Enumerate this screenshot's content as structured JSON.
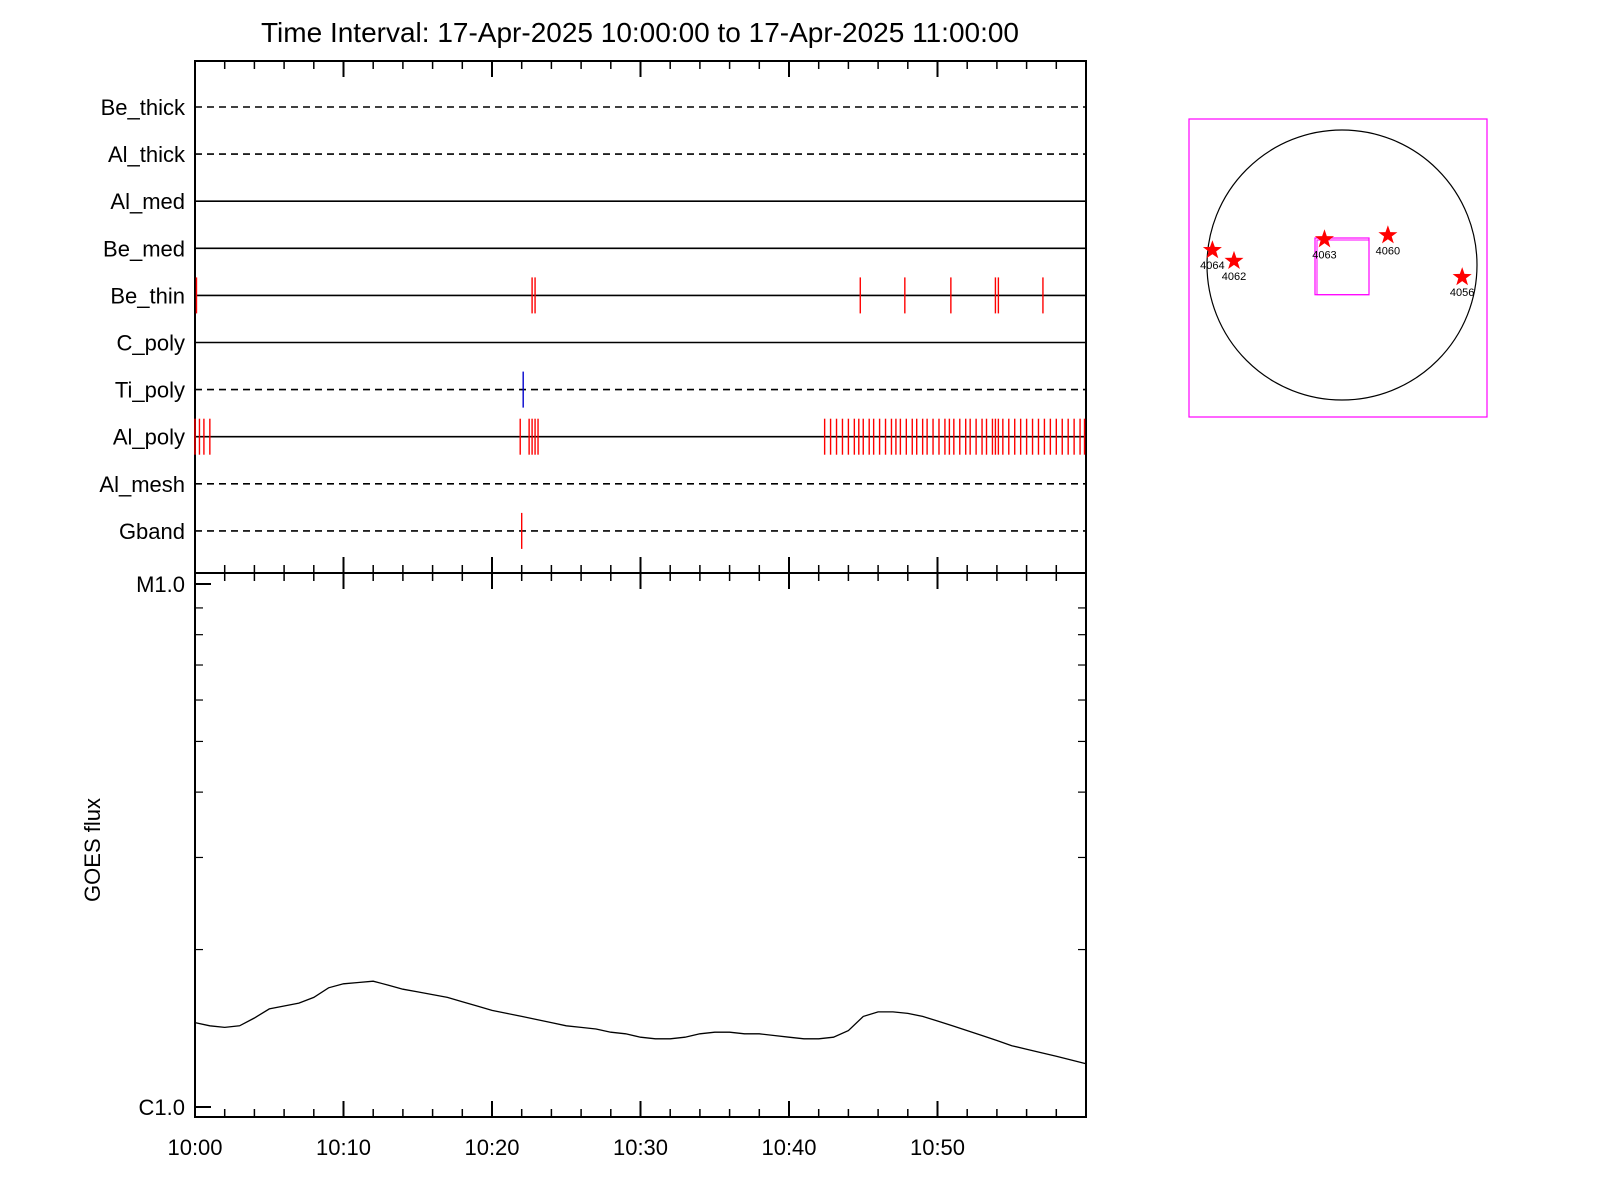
{
  "chart_data": [
    {
      "type": "timeline",
      "title": "Time Interval: 17-Apr-2025 10:00:00 to 17-Apr-2025 11:00:00",
      "x_range_minutes": [
        0,
        60
      ],
      "x_tick_labels": [
        "10:00",
        "10:10",
        "10:20",
        "10:30",
        "10:40",
        "10:50"
      ],
      "x_tick_minutes": [
        0,
        10,
        20,
        30,
        40,
        50
      ],
      "colors": {
        "red": "#ff0000",
        "blue": "#0000cc",
        "magenta": "#ff00ff",
        "axis": "#000000"
      },
      "rows": [
        {
          "label": "Be_thick",
          "style": "dashed",
          "events": [],
          "color": "#ff0000"
        },
        {
          "label": "Al_thick",
          "style": "dashed",
          "events": [],
          "color": "#ff0000"
        },
        {
          "label": "Al_med",
          "style": "solid",
          "events": [],
          "color": "#ff0000"
        },
        {
          "label": "Be_med",
          "style": "solid",
          "events": [],
          "color": "#ff0000"
        },
        {
          "label": "Be_thin",
          "style": "solid",
          "events": [
            0.1,
            22.7,
            22.9,
            44.8,
            47.8,
            50.9,
            53.9,
            54.1,
            57.1
          ],
          "color": "#ff0000"
        },
        {
          "label": "C_poly",
          "style": "solid",
          "events": [],
          "color": "#ff0000"
        },
        {
          "label": "Ti_poly",
          "style": "dashed",
          "events": [
            22.1
          ],
          "color": "#0000cc"
        },
        {
          "label": "Al_poly",
          "style": "solid",
          "events": [
            0.0,
            0.3,
            0.6,
            1.0,
            21.9,
            22.5,
            22.7,
            22.9,
            23.1,
            42.4,
            42.8,
            43.2,
            43.6,
            44.0,
            44.4,
            44.7,
            45.0,
            45.4,
            45.7,
            46.1,
            46.5,
            46.9,
            47.2,
            47.5,
            47.9,
            48.3,
            48.6,
            49.0,
            49.3,
            49.7,
            50.1,
            50.5,
            50.8,
            51.1,
            51.5,
            51.9,
            52.2,
            52.6,
            53.0,
            53.3,
            53.7,
            53.9,
            54.1,
            54.4,
            54.8,
            55.2,
            55.6,
            56.0,
            56.4,
            56.8,
            57.2,
            57.6,
            58.0,
            58.4,
            58.8,
            59.2,
            59.6,
            59.9
          ],
          "color": "#ff0000"
        },
        {
          "label": "Al_mesh",
          "style": "dashed",
          "events": [],
          "color": "#ff0000"
        },
        {
          "label": "Gband",
          "style": "dashed",
          "events": [
            22.0
          ],
          "color": "#ff0000"
        }
      ]
    },
    {
      "type": "line",
      "ylabel": "GOES flux",
      "y_scale": "log",
      "ylim": [
        "C1.0",
        "M1.0"
      ],
      "y_tick_labels": [
        "M1.0",
        "C1.0"
      ],
      "x_range_minutes": [
        0,
        60
      ],
      "x_tick_labels": [
        "10:00",
        "10:10",
        "10:20",
        "10:30",
        "10:40",
        "10:50"
      ],
      "x_tick_minutes": [
        0,
        10,
        20,
        30,
        40,
        50
      ],
      "series": [
        {
          "color": "#000000",
          "x": [
            0,
            1,
            2,
            3,
            4,
            5,
            6,
            7,
            8,
            9,
            10,
            11,
            12,
            13,
            14,
            15,
            16,
            17,
            18,
            19,
            20,
            21,
            22,
            23,
            24,
            25,
            26,
            27,
            28,
            29,
            30,
            31,
            32,
            33,
            34,
            35,
            36,
            37,
            38,
            39,
            40,
            41,
            42,
            43,
            44,
            45,
            46,
            47,
            48,
            49,
            50,
            51,
            52,
            53,
            54,
            55,
            56,
            57,
            58,
            59,
            60
          ],
          "y": [
            1.45,
            1.43,
            1.42,
            1.43,
            1.48,
            1.54,
            1.56,
            1.58,
            1.62,
            1.69,
            1.72,
            1.73,
            1.74,
            1.71,
            1.68,
            1.66,
            1.64,
            1.62,
            1.59,
            1.56,
            1.53,
            1.51,
            1.49,
            1.47,
            1.45,
            1.43,
            1.42,
            1.41,
            1.39,
            1.38,
            1.36,
            1.35,
            1.35,
            1.36,
            1.38,
            1.39,
            1.39,
            1.38,
            1.38,
            1.37,
            1.36,
            1.35,
            1.35,
            1.36,
            1.4,
            1.49,
            1.52,
            1.52,
            1.51,
            1.49,
            1.46,
            1.43,
            1.4,
            1.37,
            1.34,
            1.31,
            1.29,
            1.27,
            1.25,
            1.23,
            1.21
          ]
        }
      ]
    },
    {
      "type": "scatter",
      "points": [
        {
          "label": "4064",
          "x": -0.96,
          "y": 0.11,
          "color": "#ff0000"
        },
        {
          "label": "4062",
          "x": -0.8,
          "y": 0.03,
          "color": "#ff0000"
        },
        {
          "label": "4063",
          "x": -0.13,
          "y": 0.19,
          "color": "#ff0000"
        },
        {
          "label": "4060",
          "x": 0.34,
          "y": 0.22,
          "color": "#ff0000"
        },
        {
          "label": "4056",
          "x": 0.89,
          "y": -0.09,
          "color": "#ff0000"
        }
      ],
      "fov_box": {
        "x": [
          -0.2,
          0.2
        ],
        "y": [
          -0.22,
          0.2
        ],
        "color": "#ff00ff"
      }
    }
  ]
}
